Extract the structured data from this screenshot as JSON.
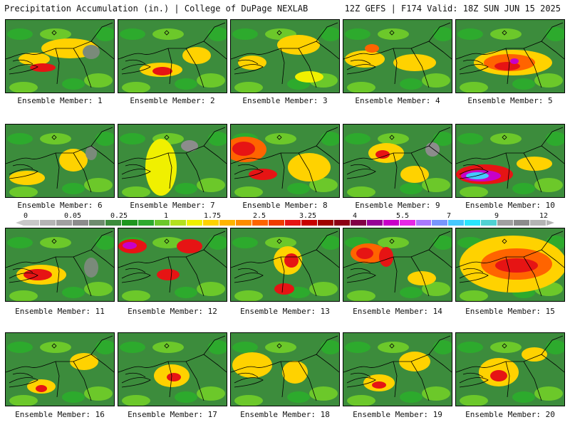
{
  "header": {
    "title": "Precipitation Accumulation (in.) | College of DuPage NEXLAB",
    "valid": "12Z GEFS | F174 Valid: 18Z SUN JUN 15 2025"
  },
  "colorbar": {
    "tick_labels": [
      "0",
      "0.05",
      "0.25",
      "1",
      "1.75",
      "2.5",
      "3.25",
      "4",
      "5.5",
      "7",
      "9",
      "12"
    ],
    "colors": [
      "#c8c8c8",
      "#b4b4b4",
      "#a0a0a0",
      "#8c8c8c",
      "#6e8c6e",
      "#3c8c3c",
      "#1e961e",
      "#2daa2d",
      "#6cc82a",
      "#b4e01e",
      "#f0f000",
      "#ffd200",
      "#ffb400",
      "#ff8c00",
      "#ff6400",
      "#f03c00",
      "#e61414",
      "#c80000",
      "#a00000",
      "#8c0014",
      "#820046",
      "#960096",
      "#c800c8",
      "#e628e6",
      "#aa78ff",
      "#7896ff",
      "#46c8ff",
      "#28e6ff",
      "#50d2d2",
      "#a0a0a0",
      "#8c8c8c",
      "#b4b4b4"
    ]
  },
  "members": [
    {
      "label": "Ensemble Member: 1",
      "blobs": [
        [
          40,
          55,
          22,
          9,
          "#ffd200"
        ],
        [
          52,
          67,
          18,
          6,
          "#e61414"
        ],
        [
          90,
          40,
          40,
          14,
          "#ffd200"
        ],
        [
          120,
          45,
          12,
          10,
          "#7a8a7a"
        ]
      ]
    },
    {
      "label": "Ensemble Member: 2",
      "blobs": [
        [
          60,
          70,
          30,
          10,
          "#ffd200"
        ],
        [
          62,
          72,
          14,
          6,
          "#e61414"
        ],
        [
          110,
          50,
          20,
          12,
          "#ffd200"
        ]
      ]
    },
    {
      "label": "Ensemble Member: 3",
      "blobs": [
        [
          30,
          60,
          20,
          10,
          "#ffd200"
        ],
        [
          95,
          35,
          30,
          14,
          "#ffd200"
        ],
        [
          110,
          80,
          20,
          8,
          "#f0f000"
        ]
      ]
    },
    {
      "label": "Ensemble Member: 4",
      "blobs": [
        [
          30,
          55,
          28,
          12,
          "#ffd200"
        ],
        [
          100,
          60,
          30,
          12,
          "#ffd200"
        ],
        [
          40,
          40,
          10,
          6,
          "#ff6400"
        ]
      ]
    },
    {
      "label": "Ensemble Member: 5",
      "blobs": [
        [
          80,
          60,
          55,
          18,
          "#ffd200"
        ],
        [
          75,
          60,
          36,
          12,
          "#ff6400"
        ],
        [
          72,
          65,
          18,
          6,
          "#e61414"
        ],
        [
          82,
          58,
          6,
          4,
          "#c800c8"
        ]
      ]
    },
    {
      "label": "Ensemble Member: 6",
      "blobs": [
        [
          30,
          75,
          25,
          10,
          "#ffd200"
        ],
        [
          95,
          50,
          20,
          16,
          "#ffd200"
        ],
        [
          120,
          40,
          8,
          10,
          "#7a8a7a"
        ]
      ]
    },
    {
      "label": "Ensemble Member: 7",
      "blobs": [
        [
          60,
          60,
          22,
          40,
          "#f0f000"
        ],
        [
          100,
          30,
          12,
          8,
          "#8c8c8c"
        ]
      ]
    },
    {
      "label": "Ensemble Member: 8",
      "blobs": [
        [
          20,
          35,
          30,
          18,
          "#ff6400"
        ],
        [
          18,
          34,
          16,
          10,
          "#e61414"
        ],
        [
          45,
          70,
          20,
          8,
          "#e61414"
        ],
        [
          110,
          60,
          30,
          20,
          "#ffd200"
        ]
      ]
    },
    {
      "label": "Ensemble Member: 9",
      "blobs": [
        [
          60,
          40,
          25,
          14,
          "#ffd200"
        ],
        [
          55,
          42,
          10,
          6,
          "#e61414"
        ],
        [
          100,
          70,
          20,
          12,
          "#ffd200"
        ],
        [
          125,
          35,
          10,
          10,
          "#8c8c8c"
        ]
      ]
    },
    {
      "label": "Ensemble Member: 10",
      "blobs": [
        [
          40,
          70,
          40,
          14,
          "#e61414"
        ],
        [
          35,
          72,
          28,
          8,
          "#c800c8"
        ],
        [
          30,
          72,
          16,
          5,
          "#46c8ff"
        ],
        [
          110,
          55,
          25,
          10,
          "#ffd200"
        ]
      ]
    },
    {
      "label": "Ensemble Member: 11",
      "blobs": [
        [
          50,
          65,
          35,
          14,
          "#ffd200"
        ],
        [
          45,
          65,
          20,
          8,
          "#e61414"
        ],
        [
          120,
          55,
          10,
          14,
          "#7a8a7a"
        ]
      ]
    },
    {
      "label": "Ensemble Member: 12",
      "blobs": [
        [
          20,
          25,
          20,
          10,
          "#e61414"
        ],
        [
          16,
          24,
          10,
          5,
          "#c800c8"
        ],
        [
          100,
          25,
          18,
          10,
          "#e61414"
        ],
        [
          70,
          65,
          16,
          8,
          "#e61414"
        ]
      ]
    },
    {
      "label": "Ensemble Member: 13",
      "blobs": [
        [
          80,
          45,
          20,
          20,
          "#ffd200"
        ],
        [
          85,
          45,
          10,
          10,
          "#e61414"
        ],
        [
          75,
          85,
          14,
          8,
          "#e61414"
        ]
      ]
    },
    {
      "label": "Ensemble Member: 14",
      "blobs": [
        [
          35,
          35,
          25,
          14,
          "#ff6400"
        ],
        [
          30,
          35,
          12,
          8,
          "#e61414"
        ],
        [
          60,
          40,
          10,
          14,
          "#e61414"
        ],
        [
          110,
          70,
          20,
          10,
          "#ffd200"
        ]
      ]
    },
    {
      "label": "Ensemble Member: 15",
      "blobs": [
        [
          80,
          50,
          75,
          40,
          "#ffd200"
        ],
        [
          85,
          50,
          50,
          22,
          "#ff6400"
        ],
        [
          85,
          52,
          30,
          10,
          "#e61414"
        ]
      ]
    },
    {
      "label": "Ensemble Member: 16",
      "blobs": [
        [
          50,
          75,
          20,
          10,
          "#ffd200"
        ],
        [
          50,
          78,
          8,
          5,
          "#e61414"
        ],
        [
          110,
          40,
          20,
          12,
          "#ffd200"
        ]
      ]
    },
    {
      "label": "Ensemble Member: 17",
      "blobs": [
        [
          75,
          60,
          25,
          16,
          "#ffd200"
        ],
        [
          78,
          62,
          10,
          6,
          "#e61414"
        ]
      ]
    },
    {
      "label": "Ensemble Member: 18",
      "blobs": [
        [
          30,
          45,
          28,
          18,
          "#ffd200"
        ],
        [
          90,
          55,
          18,
          16,
          "#ffd200"
        ]
      ]
    },
    {
      "label": "Ensemble Member: 19",
      "blobs": [
        [
          50,
          70,
          22,
          12,
          "#ffd200"
        ],
        [
          50,
          73,
          10,
          5,
          "#e61414"
        ],
        [
          100,
          40,
          22,
          14,
          "#ffd200"
        ]
      ]
    },
    {
      "label": "Ensemble Member: 20",
      "blobs": [
        [
          60,
          55,
          28,
          20,
          "#ffd200"
        ],
        [
          60,
          60,
          12,
          8,
          "#e61414"
        ],
        [
          110,
          30,
          18,
          10,
          "#ffd200"
        ]
      ]
    }
  ]
}
